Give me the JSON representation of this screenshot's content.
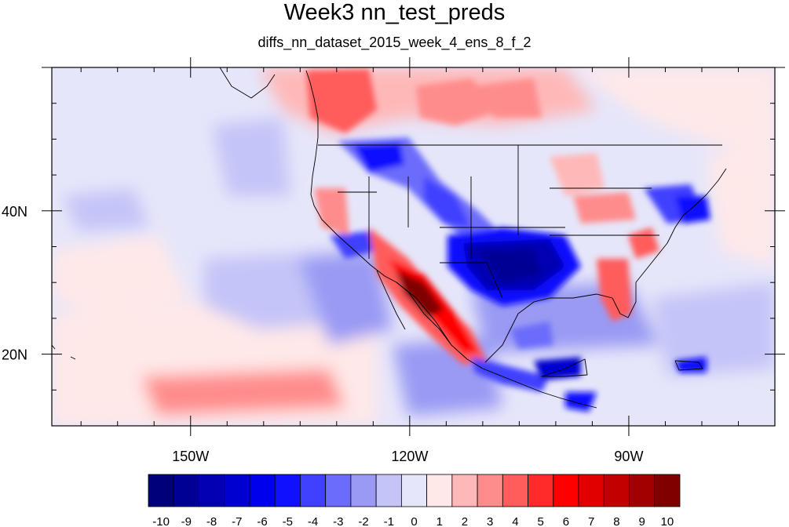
{
  "title": "Week3 nn_test_preds",
  "subtitle": "diffs_nn_dataset_2015_week_4_ens_8_f_2",
  "map": {
    "lon_range": [
      -169,
      -70
    ],
    "lat_range": [
      10,
      60
    ],
    "lon_tick_labels": [
      {
        "lon": -150,
        "label": "150W"
      },
      {
        "lon": -120,
        "label": "120W"
      },
      {
        "lon": -90,
        "label": "90W"
      }
    ],
    "lat_tick_labels": [
      {
        "lat": 40,
        "label": "40N"
      },
      {
        "lat": 20,
        "label": "20N"
      }
    ]
  },
  "colorbar": {
    "labels": [
      "-10",
      "-9",
      "-8",
      "-7",
      "-6",
      "-5",
      "-4",
      "-3",
      "-2",
      "-1",
      "0",
      "1",
      "2",
      "3",
      "4",
      "5",
      "6",
      "7",
      "8",
      "9",
      "10"
    ],
    "colors": [
      "#00007a",
      "#000095",
      "#0000b2",
      "#0000cf",
      "#0000ec",
      "#1010ff",
      "#4040ff",
      "#6c6cfc",
      "#9a9af4",
      "#c4c4f8",
      "#e6e6fa",
      "#ffe8e8",
      "#ffb8b8",
      "#ff8c8c",
      "#ff5c5c",
      "#ff2a2a",
      "#ff0000",
      "#e00000",
      "#c20000",
      "#a20000",
      "#800000"
    ]
  }
}
